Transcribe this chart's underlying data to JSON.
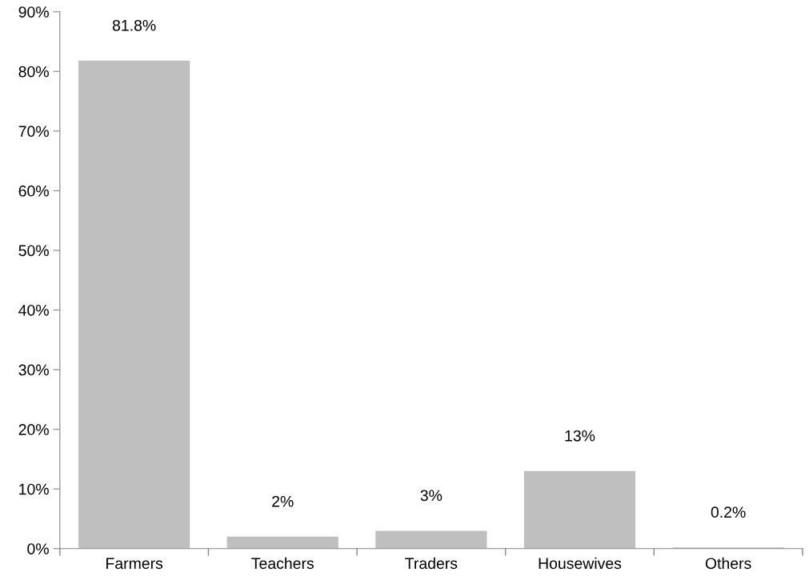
{
  "chart_data": {
    "type": "bar",
    "categories": [
      "Farmers",
      "Teachers",
      "Traders",
      "Housewives",
      "Others"
    ],
    "values": [
      81.8,
      2,
      3,
      13,
      0.2
    ],
    "value_labels": [
      "81.8%",
      "2%",
      "3%",
      "13%",
      "0.2%"
    ],
    "color": "#bfbfbf",
    "ylim": [
      0,
      90
    ],
    "yticks": [
      {
        "value": 0,
        "label": "0%"
      },
      {
        "value": 10,
        "label": "10%"
      },
      {
        "value": 20,
        "label": "20%"
      },
      {
        "value": 30,
        "label": "30%"
      },
      {
        "value": 40,
        "label": "40%"
      },
      {
        "value": 50,
        "label": "50%"
      },
      {
        "value": 60,
        "label": "60%"
      },
      {
        "value": 70,
        "label": "70%"
      },
      {
        "value": 80,
        "label": "80%"
      },
      {
        "value": 90,
        "label": "90%"
      }
    ],
    "grid": false,
    "legend": false
  }
}
